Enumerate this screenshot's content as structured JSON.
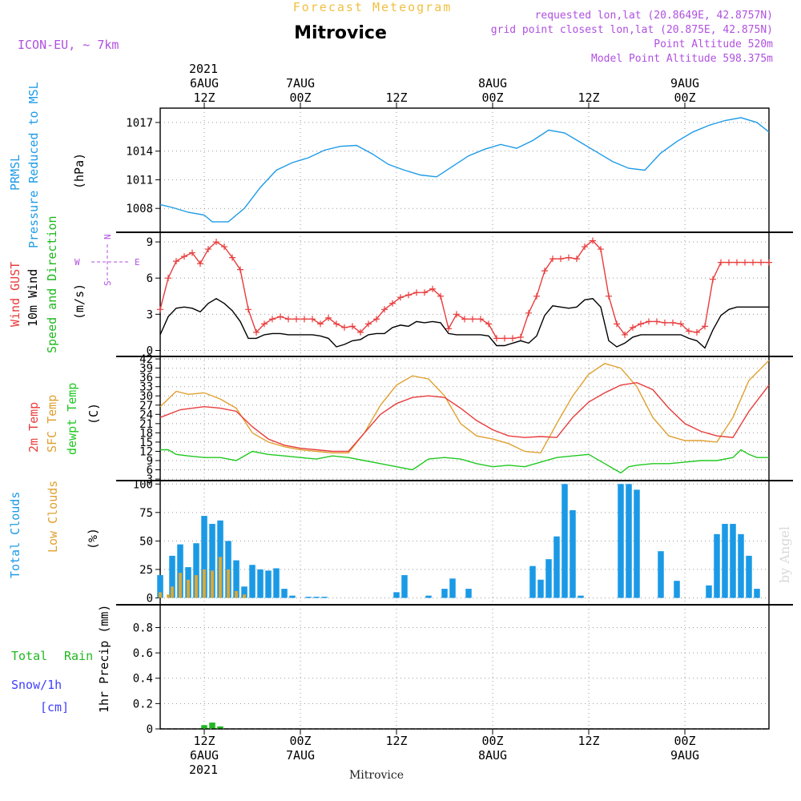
{
  "header": {
    "top_title": "Forecast Meteogram",
    "station": "Mitrovice",
    "model": "ICON-EU, ~ 7km",
    "requested": "requested lon,lat (20.8649E, 42.8757N)",
    "grid_point": "grid point closest lon,lat (20.875E, 42.875N)",
    "point_altitude": "Point Altitude 520m",
    "model_altitude": "Model Point Altitude 598.375m"
  },
  "time_axis": {
    "top_year": "2021",
    "ticks": [
      {
        "hour": 12,
        "label": "12Z",
        "date": "6AUG"
      },
      {
        "hour": 24,
        "label": "00Z",
        "date": "7AUG"
      },
      {
        "hour": 36,
        "label": "12Z",
        "date": ""
      },
      {
        "hour": 48,
        "label": "00Z",
        "date": "8AUG"
      },
      {
        "hour": 60,
        "label": "12Z",
        "date": ""
      },
      {
        "hour": 72,
        "label": "00Z",
        "date": "9AUG"
      }
    ],
    "bottom_year": "2021",
    "bottom_station": "Mitrovice",
    "start_hour": 6.5,
    "end_hour": 82.5
  },
  "watermark": "by Angel",
  "colors": {
    "pressure": "#1e9be6",
    "gust": "#e83c3c",
    "wind": "#000000",
    "wind_dir": "#20b820",
    "temp": "#e83c3c",
    "sfc_temp": "#e0a030",
    "dewpt": "#20c820",
    "total_clouds": "#1a9ae6",
    "low_clouds": "#e0a830",
    "rain": "#20b820",
    "snow": "#4040ff",
    "legend_purple": "#b050e0"
  },
  "chart_data": [
    {
      "type": "line",
      "panel": "pressure",
      "labels": [
        "PRMSL",
        "Pressure Reduced to MSL",
        "(hPa)"
      ],
      "yticks": [
        1008,
        1011,
        1014,
        1017
      ],
      "ylim": [
        1005.5,
        1018.5
      ],
      "series": [
        {
          "name": "PRMSL",
          "x": [
            6.5,
            8,
            10,
            12,
            13,
            15,
            17,
            19,
            21,
            23,
            25,
            27,
            29,
            31,
            33,
            35,
            37,
            39,
            41,
            43,
            45,
            47,
            49,
            51,
            53,
            55,
            57,
            59,
            61,
            63,
            65,
            67,
            69,
            71,
            73,
            75,
            77,
            79,
            81,
            82.5
          ],
          "y": [
            1008.4,
            1008.1,
            1007.6,
            1007.3,
            1006.6,
            1006.6,
            1008.0,
            1010.2,
            1012.0,
            1012.8,
            1013.3,
            1014.1,
            1014.5,
            1014.6,
            1013.7,
            1012.6,
            1012.0,
            1011.5,
            1011.3,
            1012.4,
            1013.5,
            1014.2,
            1014.7,
            1014.3,
            1015.1,
            1016.2,
            1015.9,
            1014.9,
            1013.9,
            1012.9,
            1012.2,
            1012.0,
            1013.8,
            1015.0,
            1016.0,
            1016.7,
            1017.2,
            1017.5,
            1017.0,
            1016.0
          ]
        }
      ]
    },
    {
      "type": "line",
      "panel": "wind",
      "labels": [
        "Wind GUST",
        "10m Wind",
        "Speed and Direction",
        "(m/s)"
      ],
      "compass": {
        "n": "N",
        "s": "S",
        "w": "W",
        "e": "E"
      },
      "yticks": [
        0,
        3,
        6,
        9
      ],
      "ylim": [
        -0.5,
        9.8
      ],
      "series": [
        {
          "name": "Wind GUST",
          "x": [
            6.5,
            7.5,
            8.5,
            9.5,
            10.5,
            11.5,
            12.5,
            13.5,
            14.5,
            15.5,
            16.5,
            17.5,
            18.5,
            19.5,
            20.5,
            21.5,
            22.5,
            23.5,
            24.5,
            25.5,
            26.5,
            27.5,
            28.5,
            29.5,
            30.5,
            31.5,
            32.5,
            33.5,
            34.5,
            35.5,
            36.5,
            37.5,
            38.5,
            39.5,
            40.5,
            41.5,
            42.5,
            43.5,
            44.5,
            45.5,
            46.5,
            47.5,
            48.5,
            49.5,
            50.5,
            51.5,
            52.5,
            53.5,
            54.5,
            55.5,
            56.5,
            57.5,
            58.5,
            59.5,
            60.5,
            61.5,
            62.5,
            63.5,
            64.5,
            65.5,
            66.5,
            67.5,
            68.5,
            69.5,
            70.5,
            71.5,
            72.5,
            73.5,
            74.5,
            75.5,
            76.5,
            77.5,
            78.5,
            79.5,
            80.5,
            81.5,
            82.5
          ],
          "y": [
            3.4,
            6.0,
            7.4,
            7.8,
            8.1,
            7.2,
            8.4,
            9.0,
            8.6,
            7.7,
            6.7,
            3.4,
            1.5,
            2.2,
            2.6,
            2.8,
            2.6,
            2.6,
            2.6,
            2.6,
            2.2,
            2.7,
            2.2,
            1.9,
            2.0,
            1.5,
            2.2,
            2.6,
            3.4,
            3.9,
            4.4,
            4.6,
            4.8,
            4.8,
            5.1,
            4.5,
            1.8,
            3.0,
            2.6,
            2.6,
            2.6,
            2.2,
            1.0,
            1.0,
            1.0,
            1.1,
            3.1,
            4.5,
            6.6,
            7.6,
            7.6,
            7.7,
            7.6,
            8.6,
            9.1,
            8.4,
            4.5,
            2.2,
            1.3,
            1.9,
            2.2,
            2.4,
            2.4,
            2.3,
            2.3,
            2.2,
            1.6,
            1.5,
            2.0,
            5.9,
            7.3,
            7.3,
            7.3,
            7.3,
            7.3,
            7.3,
            7.3
          ]
        },
        {
          "name": "10m Wind",
          "x": [
            6.5,
            7.5,
            8.5,
            9.5,
            10.5,
            11.5,
            12.5,
            13.5,
            14.5,
            15.5,
            16.5,
            17.5,
            18.5,
            19.5,
            20.5,
            21.5,
            22.5,
            23.5,
            24.5,
            25.5,
            26.5,
            27.5,
            28.5,
            29.5,
            30.5,
            31.5,
            32.5,
            33.5,
            34.5,
            35.5,
            36.5,
            37.5,
            38.5,
            39.5,
            40.5,
            41.5,
            42.5,
            43.5,
            44.5,
            45.5,
            46.5,
            47.5,
            48.5,
            49.5,
            50.5,
            51.5,
            52.5,
            53.5,
            54.5,
            55.5,
            56.5,
            57.5,
            58.5,
            59.5,
            60.5,
            61.5,
            62.5,
            63.5,
            64.5,
            65.5,
            66.5,
            67.5,
            68.5,
            69.5,
            70.5,
            71.5,
            72.5,
            73.5,
            74.5,
            75.5,
            76.5,
            77.5,
            78.5,
            79.5,
            80.5,
            81.5,
            82.5
          ],
          "y": [
            1.3,
            2.8,
            3.5,
            3.6,
            3.5,
            3.2,
            3.9,
            4.3,
            3.9,
            3.3,
            2.4,
            1.0,
            1.0,
            1.3,
            1.4,
            1.4,
            1.3,
            1.3,
            1.3,
            1.3,
            1.2,
            1.0,
            0.3,
            0.5,
            0.8,
            0.9,
            1.3,
            1.4,
            1.4,
            1.9,
            2.1,
            2.0,
            2.4,
            2.3,
            2.4,
            2.3,
            1.4,
            1.3,
            1.3,
            1.3,
            1.3,
            1.2,
            0.4,
            0.4,
            0.6,
            0.8,
            0.6,
            1.2,
            2.9,
            3.7,
            3.6,
            3.5,
            3.6,
            4.2,
            4.3,
            3.6,
            0.8,
            0.3,
            0.6,
            1.1,
            1.3,
            1.3,
            1.3,
            1.3,
            1.3,
            1.3,
            1.0,
            0.8,
            0.2,
            1.7,
            2.9,
            3.4,
            3.6,
            3.6,
            3.6,
            3.6,
            3.6
          ]
        }
      ]
    },
    {
      "type": "line",
      "panel": "temperature",
      "labels": [
        "2m Temp",
        "SFC Temp",
        "dewpt Temp",
        "(C)"
      ],
      "yticks": [
        3,
        6,
        9,
        12,
        15,
        18,
        21,
        24,
        27,
        30,
        33,
        36,
        39,
        42
      ],
      "ylim": [
        2.5,
        42.8
      ],
      "series": [
        {
          "name": "2m Temp",
          "x": [
            6.5,
            9,
            12,
            14,
            16,
            18,
            20,
            22,
            24,
            26,
            28,
            30,
            32,
            34,
            36,
            38,
            40,
            42,
            44,
            46,
            48,
            50,
            52,
            54,
            56,
            58,
            60,
            62,
            64,
            66,
            68,
            70,
            72,
            74,
            76,
            78,
            80,
            82.5
          ],
          "y": [
            23,
            25.5,
            26.5,
            26,
            25,
            20,
            16,
            14,
            13,
            12.5,
            12,
            12,
            18,
            24,
            27.5,
            29.5,
            30,
            29.5,
            26,
            22,
            19,
            17,
            16.5,
            16.8,
            16.5,
            23,
            28,
            31,
            33.5,
            34.3,
            32,
            26,
            21,
            18.5,
            17,
            16.5,
            25,
            33.5
          ]
        },
        {
          "name": "SFC Temp",
          "x": [
            6.5,
            8.5,
            10,
            12,
            14,
            16,
            18,
            20,
            22,
            24,
            26,
            28,
            30,
            32,
            34,
            36,
            38,
            40,
            42,
            44,
            46,
            48,
            50,
            52,
            54,
            56,
            58,
            60,
            62,
            64,
            66,
            68,
            70,
            72,
            74,
            76,
            78,
            80,
            82.5
          ],
          "y": [
            26.5,
            31.5,
            30.5,
            31,
            29,
            26,
            18,
            15,
            13.5,
            12.5,
            12,
            11.5,
            11.5,
            18,
            27,
            33.5,
            36.5,
            35.5,
            30,
            21,
            17,
            16,
            14.5,
            12,
            11.5,
            21,
            30,
            37,
            40.5,
            39,
            33,
            23,
            17,
            15.5,
            15.5,
            15,
            23,
            35,
            41.5
          ]
        },
        {
          "name": "dewpt Temp",
          "x": [
            6.5,
            7.5,
            8.5,
            10,
            12,
            14,
            16,
            18,
            20,
            22,
            24,
            26,
            28,
            30,
            32,
            34,
            36,
            38,
            40,
            42,
            44,
            46,
            48,
            50,
            52,
            54,
            56,
            58,
            60,
            62,
            63,
            64,
            65,
            66,
            68,
            70,
            72,
            74,
            76,
            78,
            79,
            80,
            81,
            82.5
          ],
          "y": [
            12.5,
            12.5,
            11,
            10.5,
            10,
            10,
            9,
            12,
            11,
            10.5,
            10,
            9.5,
            10.5,
            10,
            9,
            8,
            7,
            6,
            9.5,
            10,
            9.5,
            8,
            7,
            7.5,
            7,
            8.5,
            10,
            10.5,
            11,
            8,
            6.5,
            5,
            7,
            7.5,
            8,
            8,
            8.5,
            9,
            9,
            10,
            12.5,
            11,
            10,
            10
          ]
        }
      ]
    },
    {
      "type": "bar",
      "panel": "clouds",
      "labels": [
        "Total Clouds",
        "Low Clouds",
        "(%)"
      ],
      "yticks": [
        0,
        25,
        50,
        75,
        100
      ],
      "ylim": [
        -6,
        103
      ],
      "series": [
        {
          "name": "Total Clouds",
          "x": [
            6.5,
            8,
            9,
            10,
            11,
            12,
            13,
            14,
            15,
            16,
            17,
            18,
            19,
            20,
            21,
            22,
            23,
            25,
            26,
            27,
            36,
            37,
            40,
            42,
            43,
            45,
            53,
            54,
            55,
            56,
            57,
            58,
            59,
            64,
            65,
            66,
            69,
            71
          ],
          "y": [
            20,
            37,
            47,
            27,
            48,
            72,
            65,
            68,
            50,
            33,
            10,
            29,
            25,
            24,
            26,
            8,
            2,
            1,
            1,
            1,
            5,
            20,
            2,
            8,
            17,
            8,
            28,
            16,
            34,
            54,
            100,
            77,
            2,
            100,
            100,
            95,
            41,
            15
          ]
        },
        {
          "name": "Low Clouds",
          "x": [
            6.5,
            7.5,
            8,
            9,
            10,
            11,
            12,
            13,
            14,
            15,
            16,
            17
          ],
          "y": [
            5,
            3,
            10,
            22,
            16,
            20,
            25,
            24,
            36,
            25,
            6,
            3
          ]
        }
      ],
      "extra_total": {
        "x": [
          75,
          76,
          77,
          78,
          79,
          80,
          81
        ],
        "y": [
          11,
          56,
          65,
          65,
          56,
          37,
          8
        ]
      }
    },
    {
      "type": "bar",
      "panel": "precip",
      "labels": [
        "Total",
        "Rain",
        "Snow/1h",
        "[cm]",
        "1hr Precip (mm)"
      ],
      "yticks": [
        0,
        0.2,
        0.4,
        0.6,
        0.8
      ],
      "ylim": [
        0,
        0.98
      ],
      "series": [
        {
          "name": "Total Rain",
          "x": [
            12,
            13,
            14
          ],
          "y": [
            0.03,
            0.05,
            0.02
          ]
        }
      ]
    }
  ]
}
